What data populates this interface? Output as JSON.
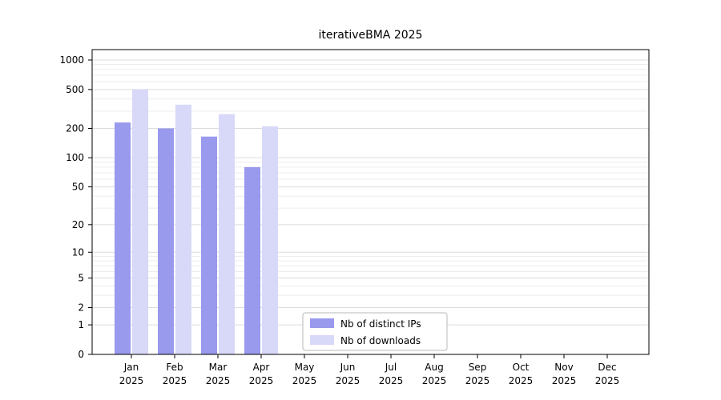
{
  "window": {
    "background": "#ffffff"
  },
  "chart_data": {
    "type": "bar",
    "title": "iterativeBMA 2025",
    "categories": [
      "Jan",
      "Feb",
      "Mar",
      "Apr",
      "May",
      "Jun",
      "Jul",
      "Aug",
      "Sep",
      "Oct",
      "Nov",
      "Dec"
    ],
    "x_tick_sublabel": "2025",
    "series": [
      {
        "name": "Nb of distinct IPs",
        "color": "#9999ee",
        "values": [
          230,
          200,
          165,
          80,
          null,
          null,
          null,
          null,
          null,
          null,
          null,
          null
        ]
      },
      {
        "name": "Nb of downloads",
        "color": "#d8d8f8",
        "values": [
          500,
          350,
          280,
          210,
          null,
          null,
          null,
          null,
          null,
          null,
          null,
          null
        ]
      }
    ],
    "y_axis": {
      "scale": "log10(1+x)",
      "ticks": [
        0,
        1,
        2,
        5,
        10,
        20,
        50,
        100,
        200,
        500,
        1000
      ],
      "minor_gridlines": [
        3,
        4,
        6,
        7,
        8,
        9,
        30,
        40,
        60,
        70,
        80,
        90,
        300,
        400,
        600,
        700,
        800,
        900
      ],
      "max": 1000
    },
    "grid": "horizontal",
    "legend": {
      "position": "lower-center",
      "entries": [
        "Nb of distinct IPs",
        "Nb of downloads"
      ]
    },
    "colors": {
      "axis": "#000000",
      "major_grid": "#dcdcdc",
      "minor_grid": "#ececec",
      "legend_border": "#b8b8b8"
    }
  }
}
